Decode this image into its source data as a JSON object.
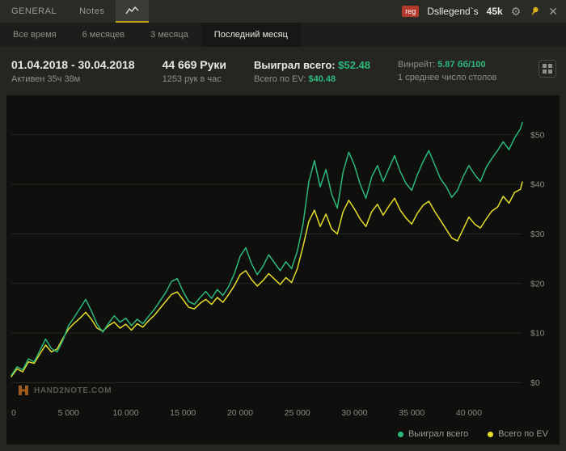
{
  "titlebar": {
    "general_tab": "GENERAL",
    "notes_tab": "Notes",
    "reg_badge": "reg",
    "username": "Dsllegend`s",
    "hands_counter": "45k"
  },
  "period_tabs": [
    {
      "label": "Все время"
    },
    {
      "label": "6 месяцев"
    },
    {
      "label": "3 месяца"
    },
    {
      "label": "Последний месяц"
    }
  ],
  "stats": {
    "date_range": "01.04.2018 - 30.04.2018",
    "active_time": "Активен 35ч 38м",
    "hands": "44 669 Руки",
    "hands_per_hour": "1253 рук в час",
    "won_label": "Выиграл всего:",
    "won_value": "$52.48",
    "ev_label": "Всего по EV:",
    "ev_value": "$40.48",
    "winrate_label": "Винрейт:",
    "winrate_value": "5.87 бб/100",
    "avg_tables": "1 среднее число столов"
  },
  "watermark_text": "HAND2NOTE.COM",
  "colors": {
    "green": "#2db97a",
    "yellow": "#e4dd2a",
    "accent": "#c7a512",
    "red_badge": "#b43a2c"
  },
  "chart_data": {
    "type": "line",
    "title": "",
    "xlabel": "",
    "ylabel": "",
    "xlim": [
      0,
      44669
    ],
    "ylim": [
      -4,
      56
    ],
    "grid": "horizontal",
    "legend_position": "bottom-right",
    "grid_color": "#262622",
    "tick_color": "#8b8b83",
    "xticks": [
      0,
      5000,
      10000,
      15000,
      20000,
      25000,
      30000,
      35000,
      40000
    ],
    "xtick_labels": [
      "0",
      "5 000",
      "10 000",
      "15 000",
      "20 000",
      "25 000",
      "30 000",
      "35 000",
      "40 000"
    ],
    "yticks": [
      0,
      10,
      20,
      30,
      40,
      50
    ],
    "ytick_labels": [
      "$0",
      "$10",
      "$20",
      "$30",
      "$40",
      "$50"
    ],
    "x": [
      0,
      500,
      1000,
      1500,
      2000,
      2500,
      3000,
      3500,
      4000,
      4500,
      5000,
      5500,
      6000,
      6500,
      7000,
      7500,
      8000,
      8500,
      9000,
      9500,
      10000,
      10500,
      11000,
      11500,
      12000,
      12500,
      13000,
      13500,
      14000,
      14500,
      15000,
      15500,
      16000,
      16500,
      17000,
      17500,
      18000,
      18500,
      19000,
      19500,
      20000,
      20500,
      21000,
      21500,
      22000,
      22500,
      23000,
      23500,
      24000,
      24500,
      25000,
      25500,
      26000,
      26500,
      27000,
      27500,
      28000,
      28500,
      29000,
      29500,
      30000,
      30500,
      31000,
      31500,
      32000,
      32500,
      33000,
      33500,
      34000,
      34500,
      35000,
      35500,
      36000,
      36500,
      37000,
      37500,
      38000,
      38500,
      39000,
      39500,
      40000,
      40500,
      41000,
      41500,
      42000,
      42500,
      43000,
      43500,
      44000,
      44500,
      44669
    ],
    "series": [
      {
        "name": "Выиграл всего",
        "color": "#2db97a",
        "final_value": 52.48,
        "values": [
          1.5,
          3.2,
          2.6,
          4.8,
          4.2,
          6.5,
          8.8,
          6.9,
          6.2,
          8.5,
          11.5,
          13.2,
          15.0,
          16.8,
          14.5,
          11.8,
          10.2,
          12.0,
          13.5,
          12.2,
          13.0,
          11.5,
          12.8,
          11.9,
          13.4,
          14.8,
          16.5,
          18.2,
          20.4,
          21.0,
          18.5,
          16.4,
          15.8,
          17.2,
          18.4,
          17.0,
          18.8,
          17.6,
          19.4,
          22.0,
          25.5,
          27.2,
          24.0,
          21.8,
          23.5,
          25.8,
          24.2,
          22.6,
          24.4,
          23.0,
          26.5,
          32.0,
          40.5,
          44.8,
          39.5,
          43.0,
          38.0,
          35.2,
          42.5,
          46.5,
          43.8,
          40.0,
          37.2,
          41.5,
          43.8,
          40.6,
          43.2,
          45.8,
          42.6,
          40.2,
          38.8,
          42.0,
          44.6,
          46.8,
          44.0,
          41.2,
          39.6,
          37.4,
          38.8,
          41.6,
          43.8,
          42.0,
          40.6,
          43.4,
          45.2,
          46.8,
          48.6,
          47.0,
          49.4,
          51.2,
          52.48
        ]
      },
      {
        "name": "Всего по EV",
        "color": "#e4dd2a",
        "final_value": 40.48,
        "values": [
          1.2,
          2.8,
          2.2,
          4.2,
          3.9,
          5.8,
          7.6,
          6.2,
          6.8,
          8.9,
          10.8,
          12.0,
          13.0,
          14.2,
          12.8,
          11.0,
          10.4,
          11.5,
          12.2,
          11.0,
          11.8,
          10.6,
          11.9,
          11.2,
          12.5,
          13.6,
          15.0,
          16.4,
          17.8,
          18.3,
          16.8,
          15.2,
          14.9,
          16.0,
          16.8,
          15.8,
          17.2,
          16.2,
          17.8,
          19.6,
          21.8,
          22.6,
          20.8,
          19.5,
          20.6,
          22.0,
          20.9,
          19.8,
          21.2,
          20.2,
          23.0,
          27.5,
          32.5,
          34.8,
          31.5,
          34.0,
          31.0,
          30.0,
          34.5,
          36.8,
          35.0,
          33.0,
          31.5,
          34.5,
          36.0,
          33.8,
          35.6,
          37.2,
          34.8,
          33.2,
          32.0,
          34.2,
          35.8,
          36.6,
          34.6,
          32.8,
          31.0,
          29.2,
          28.6,
          31.0,
          33.4,
          32.0,
          31.2,
          33.0,
          34.6,
          35.4,
          37.6,
          36.2,
          38.4,
          39.0,
          40.48
        ]
      }
    ]
  }
}
